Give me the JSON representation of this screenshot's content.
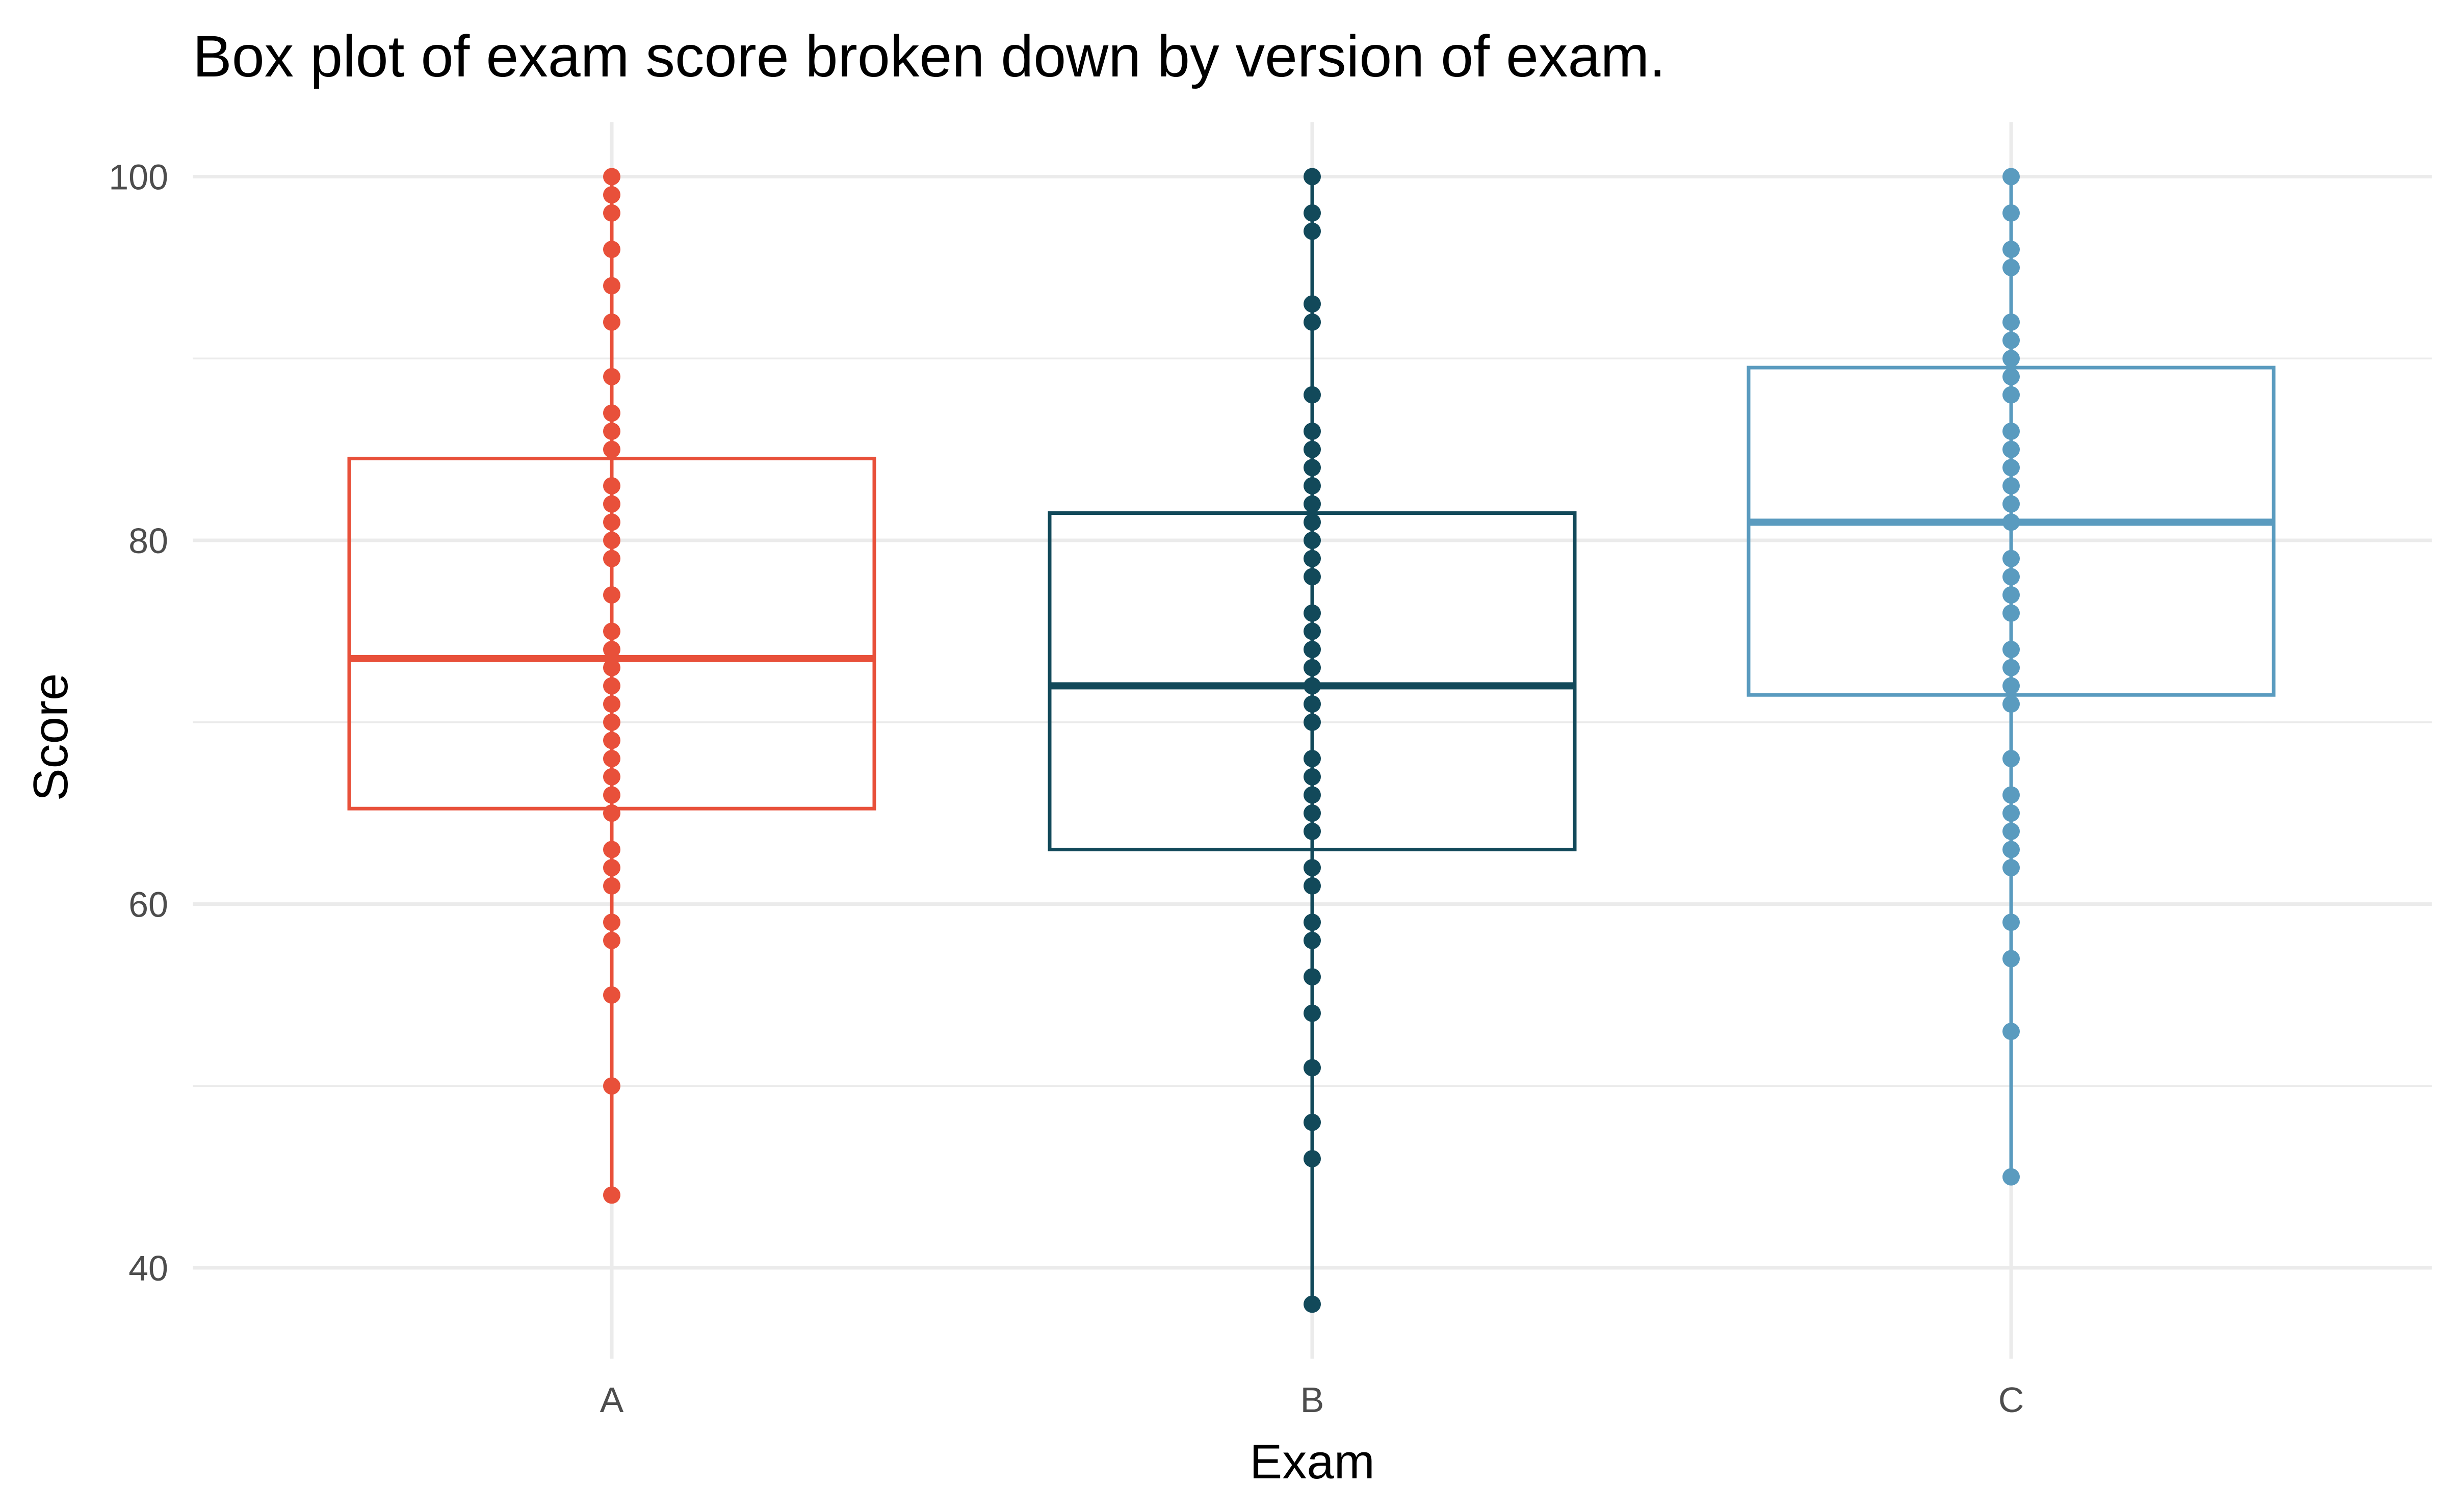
{
  "chart_data": {
    "type": "box",
    "title": "Box plot of exam score broken down by version of exam.",
    "xlabel": "Exam",
    "ylabel": "Score",
    "ylim": [
      35,
      103
    ],
    "yticks": [
      40,
      60,
      80,
      100
    ],
    "grid": true,
    "legend": "none",
    "categories": [
      "A",
      "B",
      "C"
    ],
    "series": [
      {
        "category": "A",
        "color": "#e8503a",
        "q1": 65.25,
        "median": 73.5,
        "q3": 84.5,
        "whisker_low": 44,
        "whisker_high": 100,
        "points": [
          100,
          99,
          98,
          96,
          94,
          92,
          89,
          87,
          86,
          85,
          83,
          82,
          81,
          80,
          79,
          77,
          75,
          74,
          73,
          72,
          71,
          70,
          69,
          68,
          67,
          66,
          65,
          63,
          62,
          61,
          59,
          58,
          55,
          50,
          44
        ]
      },
      {
        "category": "B",
        "color": "#12495a",
        "q1": 63,
        "median": 72,
        "q3": 81.5,
        "whisker_low": 38,
        "whisker_high": 100,
        "points": [
          100,
          98,
          97,
          93,
          92,
          88,
          86,
          85,
          84,
          83,
          82,
          81,
          80,
          79,
          78,
          76,
          75,
          74,
          73,
          72,
          71,
          70,
          68,
          67,
          66,
          65,
          64,
          62,
          61,
          59,
          58,
          56,
          54,
          51,
          48,
          46,
          38
        ]
      },
      {
        "category": "C",
        "color": "#5a9bbf",
        "q1": 71.5,
        "median": 81,
        "q3": 89.5,
        "whisker_low": 45,
        "whisker_high": 100,
        "points": [
          100,
          98,
          96,
          95,
          92,
          91,
          90,
          89,
          88,
          86,
          85,
          84,
          83,
          82,
          81,
          79,
          78,
          77,
          76,
          74,
          73,
          72,
          71,
          68,
          66,
          65,
          64,
          63,
          62,
          59,
          57,
          53,
          45
        ]
      }
    ]
  }
}
